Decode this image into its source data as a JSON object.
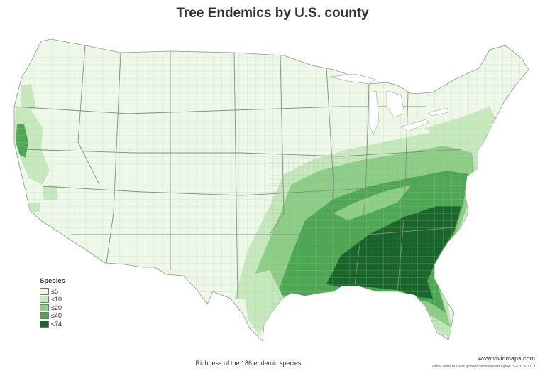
{
  "title": "Tree Endemics by U.S. county",
  "legend": {
    "title": "Species",
    "items": [
      {
        "label": "≤5",
        "color": "#eef8e8"
      },
      {
        "label": "≤10",
        "color": "#c5e8bc"
      },
      {
        "label": "≤20",
        "color": "#8ecf87"
      },
      {
        "label": "≤40",
        "color": "#4da852"
      },
      {
        "label": "≤74",
        "color": "#17652a"
      }
    ]
  },
  "caption": "Richness of the 186 endemic species",
  "credit": "www.vividmaps.com",
  "source": "Data: www.fs.usda.gov/rds/archive/catalog/RDS-2013-0013",
  "colors": {
    "background": "#ffffff",
    "land_base": "#eef8e8",
    "border": "#9aa89a"
  }
}
